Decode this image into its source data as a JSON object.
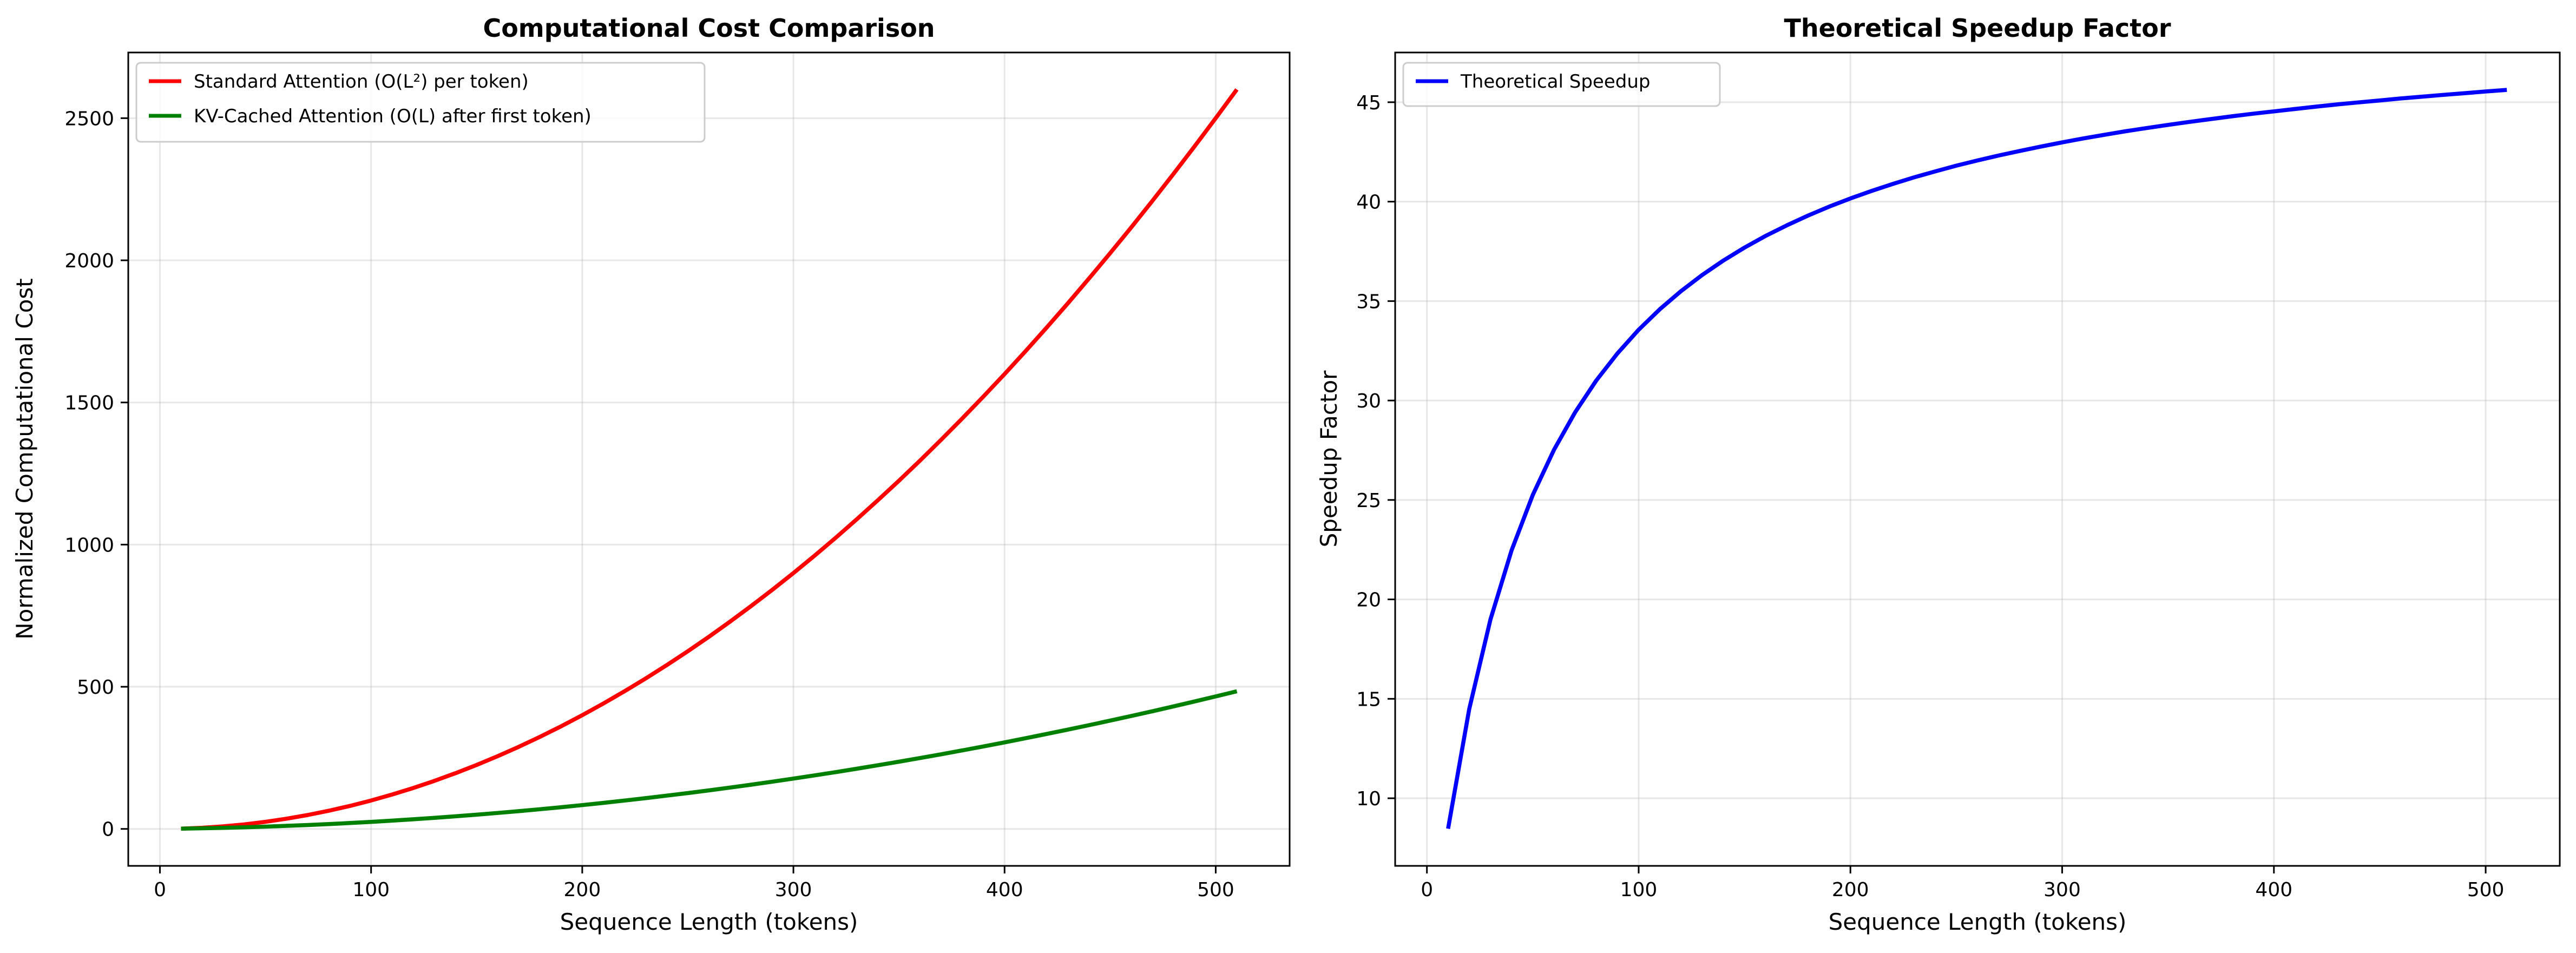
{
  "chart_data": [
    {
      "type": "line",
      "title": "Computational Cost Comparison",
      "xlabel": "Sequence Length (tokens)",
      "ylabel": "Normalized Computational Cost",
      "xlim": [
        -15,
        535
      ],
      "ylim": [
        -130,
        2731
      ],
      "xticks": [
        0,
        100,
        200,
        300,
        400,
        500
      ],
      "yticks": [
        0,
        500,
        1000,
        1500,
        2000,
        2500
      ],
      "grid": true,
      "legend_position": "top-left",
      "x": [
        10,
        20,
        30,
        40,
        50,
        60,
        70,
        80,
        90,
        100,
        110,
        120,
        130,
        140,
        150,
        160,
        170,
        180,
        190,
        200,
        210,
        220,
        230,
        240,
        250,
        260,
        270,
        280,
        290,
        300,
        310,
        320,
        330,
        340,
        350,
        360,
        370,
        380,
        390,
        400,
        410,
        420,
        430,
        440,
        450,
        460,
        470,
        480,
        490,
        500,
        510
      ],
      "series": [
        {
          "name": "Standard Attention (O(L²) per token)",
          "color": "#ff0000",
          "values": [
            1,
            4,
            9,
            16,
            25,
            36,
            49,
            64,
            81,
            100,
            121,
            144,
            169,
            196,
            225,
            256,
            289,
            324,
            361,
            400,
            441,
            484,
            529,
            576,
            625,
            676,
            729,
            784,
            841,
            900,
            961,
            1024,
            1089,
            1156,
            1225,
            1296,
            1369,
            1444,
            1521,
            1600,
            1681,
            1764,
            1849,
            1936,
            2025,
            2116,
            2209,
            2304,
            2401,
            2500,
            2601
          ]
        },
        {
          "name": "KV-Cached Attention (O(L) after first token)",
          "color": "#008000",
          "values": [
            0.9,
            2.2,
            3.9,
            5.8,
            8.1,
            10.8,
            13.8,
            17.1,
            20.8,
            24.8,
            29.2,
            33.9,
            38.9,
            44.3,
            50.0,
            56.1,
            62.5,
            69.3,
            76.4,
            83.8,
            91.6,
            99.7,
            108.2,
            117.0,
            126.1,
            135.6,
            145.5,
            155.6,
            166.1,
            177.0,
            188.2,
            199.7,
            211.6,
            223.9,
            236.4,
            249.3,
            262.6,
            276.2,
            290.1,
            304.4,
            319.0,
            334.0,
            349.3,
            364.9,
            380.9,
            397.3,
            413.9,
            430.9,
            448.3,
            466.0,
            484.0
          ]
        }
      ]
    },
    {
      "type": "line",
      "title": "Theoretical Speedup Factor",
      "xlabel": "Sequence Length (tokens)",
      "ylabel": "Speedup Factor",
      "xlim": [
        -15,
        535
      ],
      "ylim": [
        6.6,
        47.5
      ],
      "xticks": [
        0,
        100,
        200,
        300,
        400,
        500
      ],
      "yticks": [
        10,
        15,
        20,
        25,
        30,
        35,
        40,
        45
      ],
      "grid": true,
      "legend_position": "top-left",
      "x": [
        10,
        20,
        30,
        40,
        50,
        60,
        70,
        80,
        90,
        100,
        110,
        120,
        130,
        140,
        150,
        160,
        170,
        180,
        190,
        200,
        210,
        220,
        230,
        240,
        250,
        260,
        270,
        280,
        290,
        300,
        310,
        320,
        330,
        340,
        350,
        360,
        370,
        380,
        390,
        400,
        410,
        420,
        430,
        440,
        450,
        460,
        470,
        480,
        490,
        500,
        510
      ],
      "series": [
        {
          "name": "Theoretical Speedup",
          "color": "#0000ff",
          "values": [
            8.47,
            14.49,
            18.99,
            22.47,
            25.25,
            27.52,
            29.41,
            31.01,
            32.37,
            33.56,
            34.59,
            35.5,
            36.31,
            37.04,
            37.69,
            38.28,
            38.81,
            39.3,
            39.75,
            40.16,
            40.54,
            40.89,
            41.22,
            41.52,
            41.81,
            42.07,
            42.32,
            42.55,
            42.77,
            42.98,
            43.18,
            43.36,
            43.54,
            43.7,
            43.86,
            44.01,
            44.15,
            44.29,
            44.42,
            44.54,
            44.66,
            44.78,
            44.89,
            44.99,
            45.09,
            45.19,
            45.28,
            45.37,
            45.45,
            45.54,
            45.62
          ]
        }
      ]
    }
  ]
}
